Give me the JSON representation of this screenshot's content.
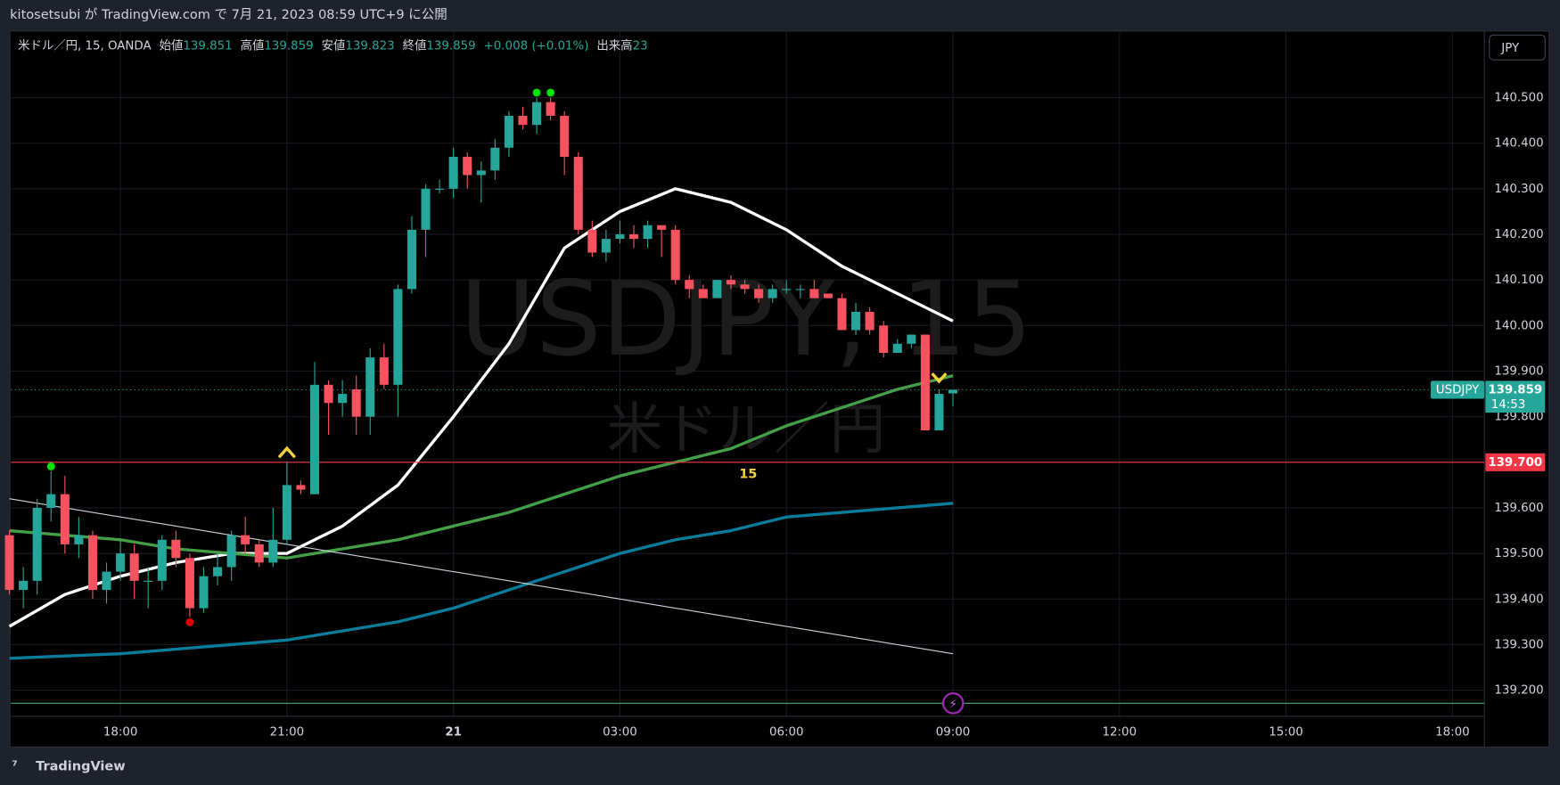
{
  "header": {
    "published": "kitosetsubi が TradingView.com で 7月 21, 2023 08:59 UTC+9 に公開"
  },
  "legend": {
    "symbol": "米ドル／円, 15, OANDA",
    "items": [
      {
        "label": "始値",
        "value": "139.851"
      },
      {
        "label": "高値",
        "value": "139.859"
      },
      {
        "label": "安値",
        "value": "139.823"
      },
      {
        "label": "終値",
        "value": "139.859"
      }
    ],
    "change": "+0.008 (+0.01%)",
    "volume_label": "出来高",
    "volume": "23"
  },
  "currency_button": "JPY",
  "footer": "TradingView",
  "chart_data": {
    "type": "candlestick",
    "watermark": "USDJPY, 15",
    "watermark_sub": "米ドル／円",
    "interval_label": "15",
    "open": [
      139.54,
      139.42,
      139.44,
      139.6,
      139.63,
      139.52,
      139.54,
      139.42,
      139.46,
      139.5,
      139.44,
      139.44,
      139.53,
      139.49,
      139.38,
      139.45,
      139.47,
      139.54,
      139.52,
      139.48,
      139.53,
      139.65,
      139.63,
      139.87,
      139.83,
      139.86,
      139.8,
      139.93,
      139.87,
      140.08,
      140.21,
      140.3,
      140.3,
      140.37,
      140.33,
      140.34,
      140.39,
      140.46,
      140.44,
      140.49,
      140.46,
      140.37,
      140.21,
      140.16,
      140.19,
      140.2,
      140.19,
      140.22,
      140.21,
      140.1,
      140.08,
      140.06,
      140.1,
      140.09,
      140.08,
      140.06,
      140.08,
      140.08,
      140.08,
      140.07,
      140.06,
      139.99,
      140.03,
      140.0,
      139.94,
      139.96,
      139.98,
      139.77,
      139.851
    ],
    "high": [
      139.55,
      139.47,
      139.62,
      139.68,
      139.67,
      139.58,
      139.55,
      139.48,
      139.53,
      139.52,
      139.47,
      139.54,
      139.55,
      139.5,
      139.47,
      139.5,
      139.55,
      139.58,
      139.53,
      139.6,
      139.7,
      139.66,
      139.92,
      139.88,
      139.88,
      139.89,
      139.95,
      139.96,
      140.09,
      140.24,
      140.31,
      140.32,
      140.39,
      140.38,
      140.36,
      140.41,
      140.47,
      140.48,
      140.5,
      140.5,
      140.47,
      140.38,
      140.23,
      140.21,
      140.23,
      140.22,
      140.23,
      140.22,
      140.22,
      140.11,
      140.09,
      140.1,
      140.11,
      140.1,
      140.09,
      140.09,
      140.1,
      140.09,
      140.1,
      140.07,
      140.07,
      140.05,
      140.04,
      140.01,
      139.97,
      139.98,
      139.98,
      139.86,
      139.859
    ],
    "low": [
      139.41,
      139.38,
      139.41,
      139.57,
      139.5,
      139.49,
      139.4,
      139.39,
      139.44,
      139.4,
      139.38,
      139.42,
      139.47,
      139.36,
      139.37,
      139.43,
      139.44,
      139.5,
      139.47,
      139.47,
      139.52,
      139.63,
      139.63,
      139.76,
      139.8,
      139.76,
      139.76,
      139.86,
      139.8,
      140.07,
      140.15,
      140.29,
      140.28,
      140.3,
      140.27,
      140.32,
      140.37,
      140.43,
      140.42,
      140.45,
      140.33,
      140.2,
      140.15,
      140.14,
      140.18,
      140.17,
      140.17,
      140.15,
      140.09,
      140.06,
      140.06,
      140.06,
      140.08,
      140.07,
      140.05,
      140.05,
      140.07,
      140.06,
      140.06,
      140.06,
      139.99,
      139.98,
      139.98,
      139.93,
      139.94,
      139.95,
      139.77,
      139.77,
      139.823
    ],
    "close": [
      139.42,
      139.44,
      139.6,
      139.63,
      139.52,
      139.54,
      139.42,
      139.46,
      139.5,
      139.44,
      139.44,
      139.53,
      139.49,
      139.38,
      139.45,
      139.47,
      139.54,
      139.52,
      139.48,
      139.53,
      139.65,
      139.64,
      139.87,
      139.83,
      139.85,
      139.8,
      139.93,
      139.87,
      140.08,
      140.21,
      140.3,
      140.3,
      140.37,
      140.33,
      140.34,
      140.39,
      140.46,
      140.44,
      140.49,
      140.46,
      140.37,
      140.21,
      140.16,
      140.19,
      140.2,
      140.19,
      140.22,
      140.21,
      140.1,
      140.08,
      140.06,
      140.1,
      140.09,
      140.08,
      140.06,
      140.08,
      140.08,
      140.08,
      140.06,
      140.06,
      139.99,
      140.03,
      139.99,
      139.94,
      139.96,
      139.98,
      139.77,
      139.85,
      139.859
    ],
    "up_color": "#26a69a",
    "down_color": "#f7525f",
    "lines": [
      {
        "color": "#ffffff",
        "width": 3,
        "x": [
          0,
          4,
          8,
          12,
          16,
          20,
          24,
          28,
          32,
          36,
          40,
          44,
          48,
          52,
          56,
          60,
          64,
          68
        ],
        "values": [
          139.34,
          139.41,
          139.45,
          139.48,
          139.5,
          139.5,
          139.56,
          139.65,
          139.8,
          139.96,
          140.17,
          140.25,
          140.3,
          140.27,
          140.21,
          140.13,
          140.07,
          140.01
        ]
      },
      {
        "color": "#43a047",
        "width": 3,
        "x": [
          0,
          4,
          8,
          12,
          16,
          20,
          24,
          28,
          32,
          36,
          40,
          44,
          48,
          52,
          56,
          60,
          64,
          68
        ],
        "values": [
          139.55,
          139.54,
          139.53,
          139.51,
          139.5,
          139.49,
          139.51,
          139.53,
          139.56,
          139.59,
          139.63,
          139.67,
          139.7,
          139.73,
          139.78,
          139.82,
          139.86,
          139.89
        ]
      },
      {
        "color": "#0b7d9c",
        "width": 3,
        "x": [
          0,
          8,
          16,
          20,
          24,
          28,
          32,
          36,
          40,
          44,
          48,
          52,
          56,
          60,
          64,
          68
        ],
        "values": [
          139.27,
          139.28,
          139.3,
          139.31,
          139.33,
          139.35,
          139.38,
          139.42,
          139.46,
          139.5,
          139.53,
          139.55,
          139.58,
          139.59,
          139.6,
          139.61
        ]
      },
      {
        "color": "#d1d4dc",
        "width": 1,
        "x": [
          0,
          68
        ],
        "values": [
          139.62,
          139.28
        ]
      }
    ],
    "up_dots": [
      3,
      38,
      39
    ],
    "down_dots": [
      13
    ],
    "up_arrows": [
      20
    ],
    "down_arrows": [
      67
    ],
    "hline": {
      "value": 139.7,
      "label": "139.700",
      "color": "#f23645"
    },
    "last_price": 139.859,
    "last_symbol": "USDJPY",
    "countdown": "14:53",
    "ylim": [
      139.143,
      140.646
    ],
    "yticks": [
      {
        "value": 139.2,
        "label": "139.200"
      },
      {
        "value": 139.3,
        "label": "139.300"
      },
      {
        "value": 139.4,
        "label": "139.400"
      },
      {
        "value": 139.5,
        "label": "139.500"
      },
      {
        "value": 139.6,
        "label": "139.600"
      },
      {
        "value": 139.7,
        "label": "139.700"
      },
      {
        "value": 139.8,
        "label": "139.800"
      },
      {
        "value": 139.9,
        "label": "139.900"
      },
      {
        "value": 140,
        "label": "140.000"
      },
      {
        "value": 140.1,
        "label": "140.100"
      },
      {
        "value": 140.2,
        "label": "140.200"
      },
      {
        "value": 140.3,
        "label": "140.300"
      },
      {
        "value": 140.4,
        "label": "140.400"
      },
      {
        "value": 140.5,
        "label": "140.500"
      }
    ],
    "xlim": [
      0.11,
      106.3
    ],
    "xticks": [
      {
        "value": 8,
        "label": "18:00"
      },
      {
        "value": 20,
        "label": "21:00"
      },
      {
        "value": 32,
        "label": "21"
      },
      {
        "value": 44,
        "label": "03:00"
      },
      {
        "value": 56,
        "label": "06:00"
      },
      {
        "value": 68,
        "label": "09:00"
      },
      {
        "value": 80,
        "label": "12:00"
      },
      {
        "value": 92,
        "label": "15:00"
      },
      {
        "value": 104,
        "label": "18:00"
      }
    ],
    "grid": true
  }
}
